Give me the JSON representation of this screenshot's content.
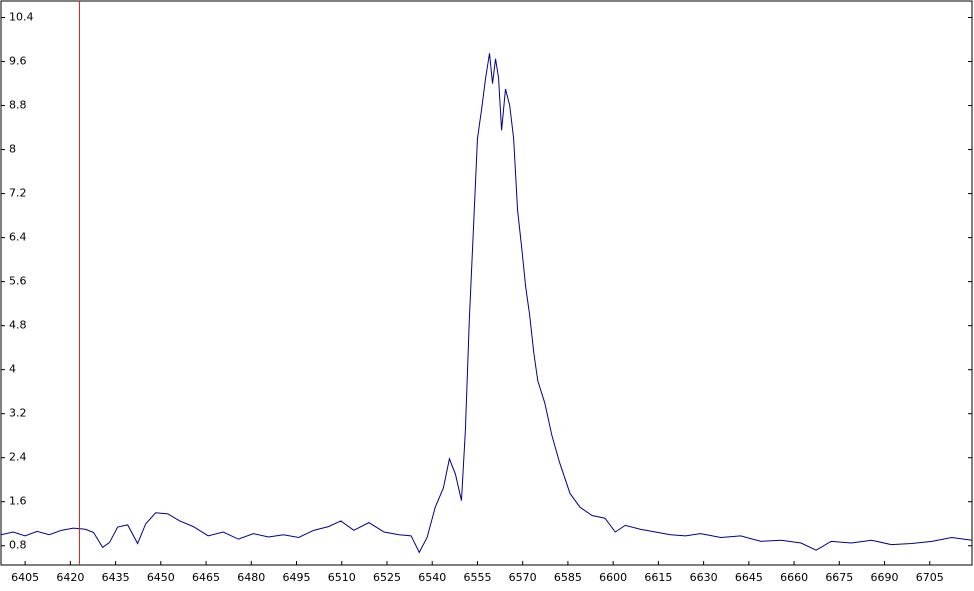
{
  "chart_data": {
    "type": "line",
    "x": [
      6397,
      6401,
      6405,
      6409,
      6413,
      6417,
      6421,
      6425,
      6427.7,
      6430.7,
      6433,
      6435.7,
      6439,
      6442.3,
      6445,
      6448.3,
      6452.3,
      6456.3,
      6460.7,
      6465.7,
      6470.7,
      6475.7,
      6480.7,
      6485.7,
      6490.7,
      6495.7,
      6500.7,
      6505.7,
      6509.7,
      6514,
      6519,
      6524,
      6529,
      6533,
      6535.7,
      6538.3,
      6541,
      6543.7,
      6545.7,
      6547.7,
      6549.7,
      6551,
      6552.3,
      6553.7,
      6555,
      6556.3,
      6557.7,
      6559,
      6560,
      6561,
      6562,
      6563,
      6564.3,
      6565.7,
      6567,
      6568.3,
      6569.7,
      6571,
      6572.3,
      6573.7,
      6575,
      6577.3,
      6579.7,
      6582.3,
      6585.7,
      6589,
      6593,
      6597.3,
      6600.7,
      6604,
      6609,
      6614,
      6619,
      6624,
      6629,
      6635.7,
      6642.3,
      6649,
      6655.7,
      6662.3,
      6667.3,
      6672.3,
      6679,
      6685.7,
      6692.3,
      6699,
      6705.7,
      6712.3,
      6719
    ],
    "series": [
      {
        "color": "#00008b",
        "values": [
          1.0,
          1.05,
          0.98,
          1.06,
          1.0,
          1.08,
          1.12,
          1.1,
          1.04,
          0.77,
          0.86,
          1.14,
          1.18,
          0.84,
          1.2,
          1.4,
          1.38,
          1.25,
          1.15,
          0.98,
          1.05,
          0.92,
          1.02,
          0.96,
          1.0,
          0.95,
          1.08,
          1.15,
          1.25,
          1.08,
          1.22,
          1.05,
          1.0,
          0.98,
          0.68,
          0.95,
          1.5,
          1.85,
          2.38,
          2.1,
          1.62,
          2.9,
          4.9,
          6.6,
          8.2,
          8.7,
          9.3,
          9.75,
          9.2,
          9.65,
          9.3,
          8.35,
          9.1,
          8.8,
          8.2,
          6.9,
          6.2,
          5.5,
          5.0,
          4.3,
          3.8,
          3.4,
          2.8,
          2.3,
          1.75,
          1.5,
          1.35,
          1.3,
          1.05,
          1.17,
          1.1,
          1.05,
          1.0,
          0.98,
          1.02,
          0.95,
          0.98,
          0.88,
          0.9,
          0.85,
          0.72,
          0.88,
          0.85,
          0.9,
          0.82,
          0.84,
          0.88,
          0.95,
          0.9
        ]
      }
    ],
    "xlim": [
      6397,
      6719
    ],
    "ylim": [
      0.45,
      10.7
    ],
    "xticks": [
      6405,
      6420,
      6435,
      6450,
      6465,
      6480,
      6495,
      6510,
      6525,
      6540,
      6555,
      6570,
      6585,
      6600,
      6615,
      6630,
      6645,
      6660,
      6675,
      6690,
      6705
    ],
    "yticks": [
      0.8,
      1.6,
      2.4,
      3.2,
      4,
      4.8,
      5.6,
      6.4,
      7.2,
      8,
      8.8,
      9.6,
      10.4
    ],
    "cursor_x": 6423,
    "cursor_color": "#b22222",
    "grid": false
  }
}
